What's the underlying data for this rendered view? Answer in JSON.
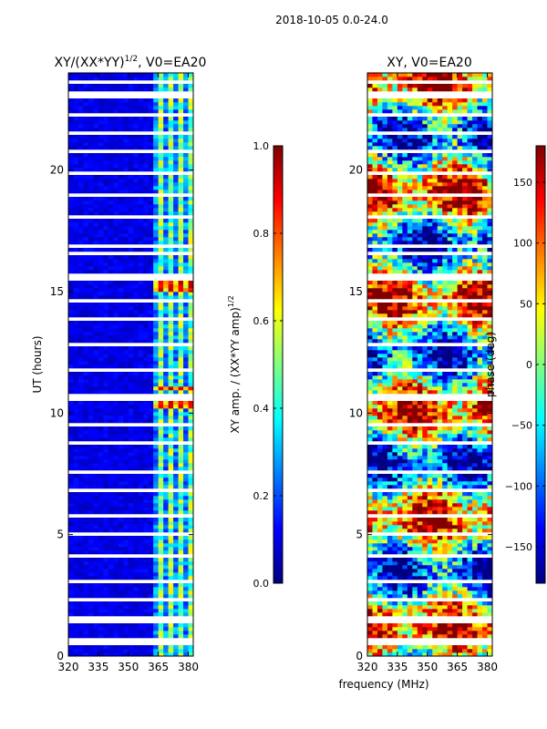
{
  "suptitle": "2018-10-05 0.0-24.0",
  "shared_xlabel": "frequency (MHz)",
  "chart_data": [
    {
      "type": "heatmap",
      "title_main": "XY/(XX*YY)",
      "title_sup": "1/2",
      "title_rest": ", V0=EA20",
      "ylabel": "UT (hours)",
      "xlim": [
        320,
        382.5
      ],
      "ylim": [
        0,
        24
      ],
      "xticks": [
        "320",
        "335",
        "350",
        "365",
        "380"
      ],
      "yticks": [
        "0",
        "5",
        "10",
        "15",
        "20"
      ],
      "colorbar": {
        "label_main": "XY amp. / (XX*YY amp)",
        "label_sup": "1/2",
        "range": [
          0.0,
          1.0
        ],
        "ticks": [
          "0.0",
          "0.2",
          "0.4",
          "0.6",
          "0.8",
          "1.0"
        ],
        "colormap": "jet"
      }
    },
    {
      "type": "heatmap",
      "title": "XY, V0=EA20",
      "ylabel": "",
      "xlim": [
        320,
        382.5
      ],
      "ylim": [
        0,
        24
      ],
      "xticks": [
        "320",
        "335",
        "350",
        "365",
        "380"
      ],
      "yticks": [
        "0",
        "5",
        "10",
        "15",
        "20"
      ],
      "colorbar": {
        "label": "phase (deg)",
        "range": [
          -180,
          180
        ],
        "ticks": [
          "-150",
          "-100",
          "-50",
          "0",
          "50",
          "100",
          "150"
        ],
        "colormap": "jet"
      }
    }
  ]
}
